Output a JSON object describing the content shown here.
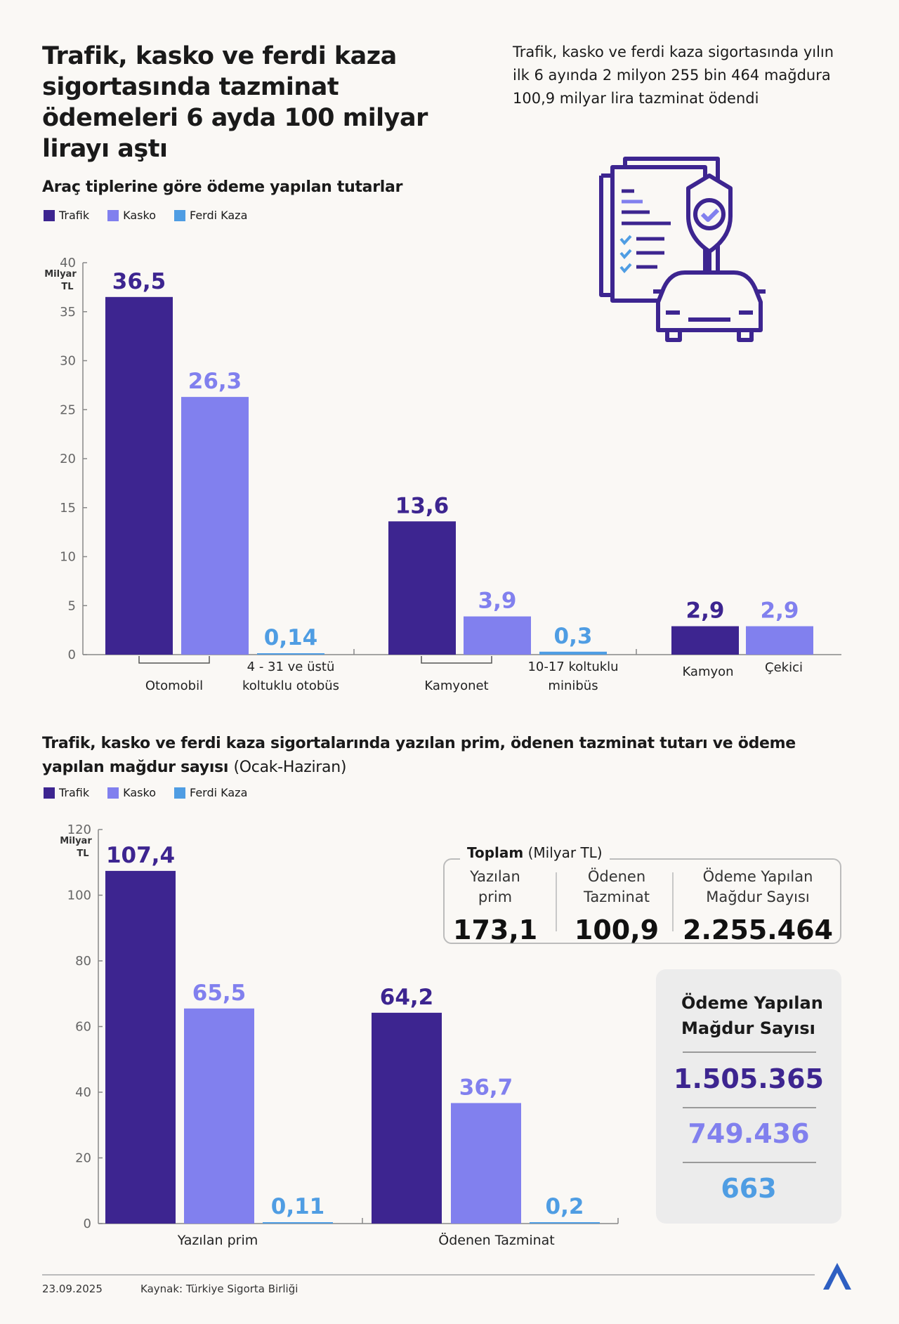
{
  "title": "Trafik, kasko ve ferdi kaza sigortasında tazminat ödemeleri 6 ayda 100 milyar lirayı aştı",
  "summary": "Trafik, kasko ve ferdi kaza sigortasında yılın ilk 6 ayında 2 milyon 255 bin 464 mağdura 100,9 milyar lira tazminat ödendi",
  "colors": {
    "trafik": "#3d2590",
    "kasko": "#8180ee",
    "ferdi": "#4f9de3",
    "background": "#faf8f5"
  },
  "legend": [
    "Trafik",
    "Kasko",
    "Ferdi Kaza"
  ],
  "illustration": "insurance-document-shield-car-icon",
  "chart_data": [
    {
      "type": "bar",
      "title": "Araç tiplerine göre ödeme yapılan tutarlar",
      "ylabel": "Milyar TL",
      "ylim": [
        0,
        40
      ],
      "yticks": [
        "0",
        "5",
        "10",
        "15",
        "20",
        "25",
        "30",
        "35",
        "40"
      ],
      "categories": [
        "Otomobil",
        "4 - 31 ve üstü koltuklu otobüs",
        "Kamyonet",
        "10-17 koltuklu minibüs",
        "Kamyon",
        "Çekici"
      ],
      "bars": [
        {
          "category": "Otomobil",
          "series": "Trafik",
          "value": 36.5,
          "label": "36,5"
        },
        {
          "category": "Otomobil",
          "series": "Kasko",
          "value": 26.3,
          "label": "26,3"
        },
        {
          "category": "4 - 31 ve üstü koltuklu otobüs",
          "series": "Ferdi Kaza",
          "value": 0.14,
          "label": "0,14"
        },
        {
          "category": "Kamyonet",
          "series": "Trafik",
          "value": 13.6,
          "label": "13,6"
        },
        {
          "category": "Kamyonet",
          "series": "Kasko",
          "value": 3.9,
          "label": "3,9"
        },
        {
          "category": "10-17 koltuklu minibüs",
          "series": "Ferdi Kaza",
          "value": 0.3,
          "label": "0,3"
        },
        {
          "category": "Kamyon",
          "series": "Trafik",
          "value": 2.9,
          "label": "2,9"
        },
        {
          "category": "Çekici",
          "series": "Kasko",
          "value": 2.9,
          "label": "2,9"
        }
      ],
      "legend_position": "top-left",
      "grid": false
    },
    {
      "type": "bar",
      "title": "Trafik, kasko ve ferdi kaza sigortalarında yazılan prim, ödenen tazminat tutarı ve ödeme yapılan mağdur sayısı",
      "title_suffix": "(Ocak-Haziran)",
      "ylabel": "Milyar TL",
      "ylim": [
        0,
        120
      ],
      "yticks": [
        "0",
        "20",
        "40",
        "60",
        "80",
        "100",
        "120"
      ],
      "categories": [
        "Yazılan prim",
        "Ödenen Tazminat"
      ],
      "series": [
        {
          "name": "Trafik",
          "values": [
            107.4,
            64.2
          ],
          "labels": [
            "107,4",
            "64,2"
          ]
        },
        {
          "name": "Kasko",
          "values": [
            65.5,
            36.7
          ],
          "labels": [
            "65,5",
            "36,7"
          ]
        },
        {
          "name": "Ferdi Kaza",
          "values": [
            0.11,
            0.2
          ],
          "labels": [
            "0,11",
            "0,2"
          ]
        }
      ],
      "legend_position": "top-left",
      "grid": false
    }
  ],
  "totals": {
    "heading": "Toplam",
    "unit": "(Milyar TL)",
    "items": [
      {
        "label1": "Yazılan",
        "label2": "prim",
        "value": "173,1"
      },
      {
        "label1": "Ödenen",
        "label2": "Tazminat",
        "value": "100,9"
      },
      {
        "label1": "Ödeme Yapılan",
        "label2": "Mağdur Sayısı",
        "value": "2.255.464"
      }
    ]
  },
  "victims": {
    "heading1": "Ödeme Yapılan",
    "heading2": "Mağdur Sayısı",
    "trafik": "1.505.365",
    "kasko": "749.436",
    "ferdi": "663"
  },
  "footer": {
    "date": "23.09.2025",
    "source": "Kaynak: Türkiye Sigorta Birliği",
    "logo": "AA"
  }
}
